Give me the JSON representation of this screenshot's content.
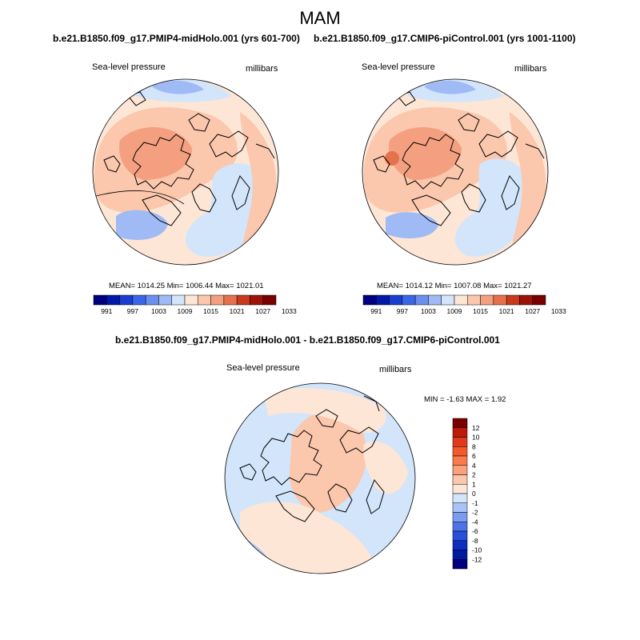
{
  "season_title": "MAM",
  "panels": [
    {
      "title": "b.e21.B1850.f09_g17.PMIP4-midHolo.001 (yrs 601-700)",
      "field_label": "Sea-level pressure",
      "units_label": "millibars",
      "stats": "MEAN= 1014.25  Min= 1006.44  Max= 1021.01"
    },
    {
      "title": "b.e21.B1850.f09_g17.CMIP6-piControl.001 (yrs 1001-1100)",
      "field_label": "Sea-level pressure",
      "units_label": "millibars",
      "stats": "MEAN= 1014.12  Min= 1007.08  Max= 1021.27"
    }
  ],
  "diff_panel": {
    "title": "b.e21.B1850.f09_g17.PMIP4-midHolo.001 - b.e21.B1850.f09_g17.CMIP6-piControl.001",
    "field_label": "Sea-level pressure",
    "units_label": "millibars",
    "stats": "MIN =  -1.63 MAX =   1.92"
  },
  "abs_colorbar": {
    "colors": [
      "#00007f",
      "#0019a8",
      "#1a3fd0",
      "#3a66e6",
      "#6a8fef",
      "#9fbaf5",
      "#d2e5fb",
      "#fde6d6",
      "#fbc7ad",
      "#f4a080",
      "#e6714d",
      "#c9391c",
      "#9c1408",
      "#7a0000"
    ],
    "labels": [
      "991",
      "997",
      "1003",
      "1009",
      "1015",
      "1021",
      "1027",
      "1033"
    ]
  },
  "diff_colorbar": {
    "colors": [
      "#7a0000",
      "#bd1a0a",
      "#e03a1d",
      "#f5582a",
      "#f97b4d",
      "#fba07b",
      "#fbc7ad",
      "#fde6d6",
      "#d2e5fb",
      "#a9c3f6",
      "#7a9df0",
      "#4c74e8",
      "#2a4fd9",
      "#0d2cc0",
      "#001ba0",
      "#00007f"
    ],
    "labels": [
      "12",
      "10",
      "8",
      "6",
      "4",
      "2",
      "1",
      "0",
      "-1",
      "-2",
      "-4",
      "-6",
      "-8",
      "-10",
      "-12"
    ]
  }
}
